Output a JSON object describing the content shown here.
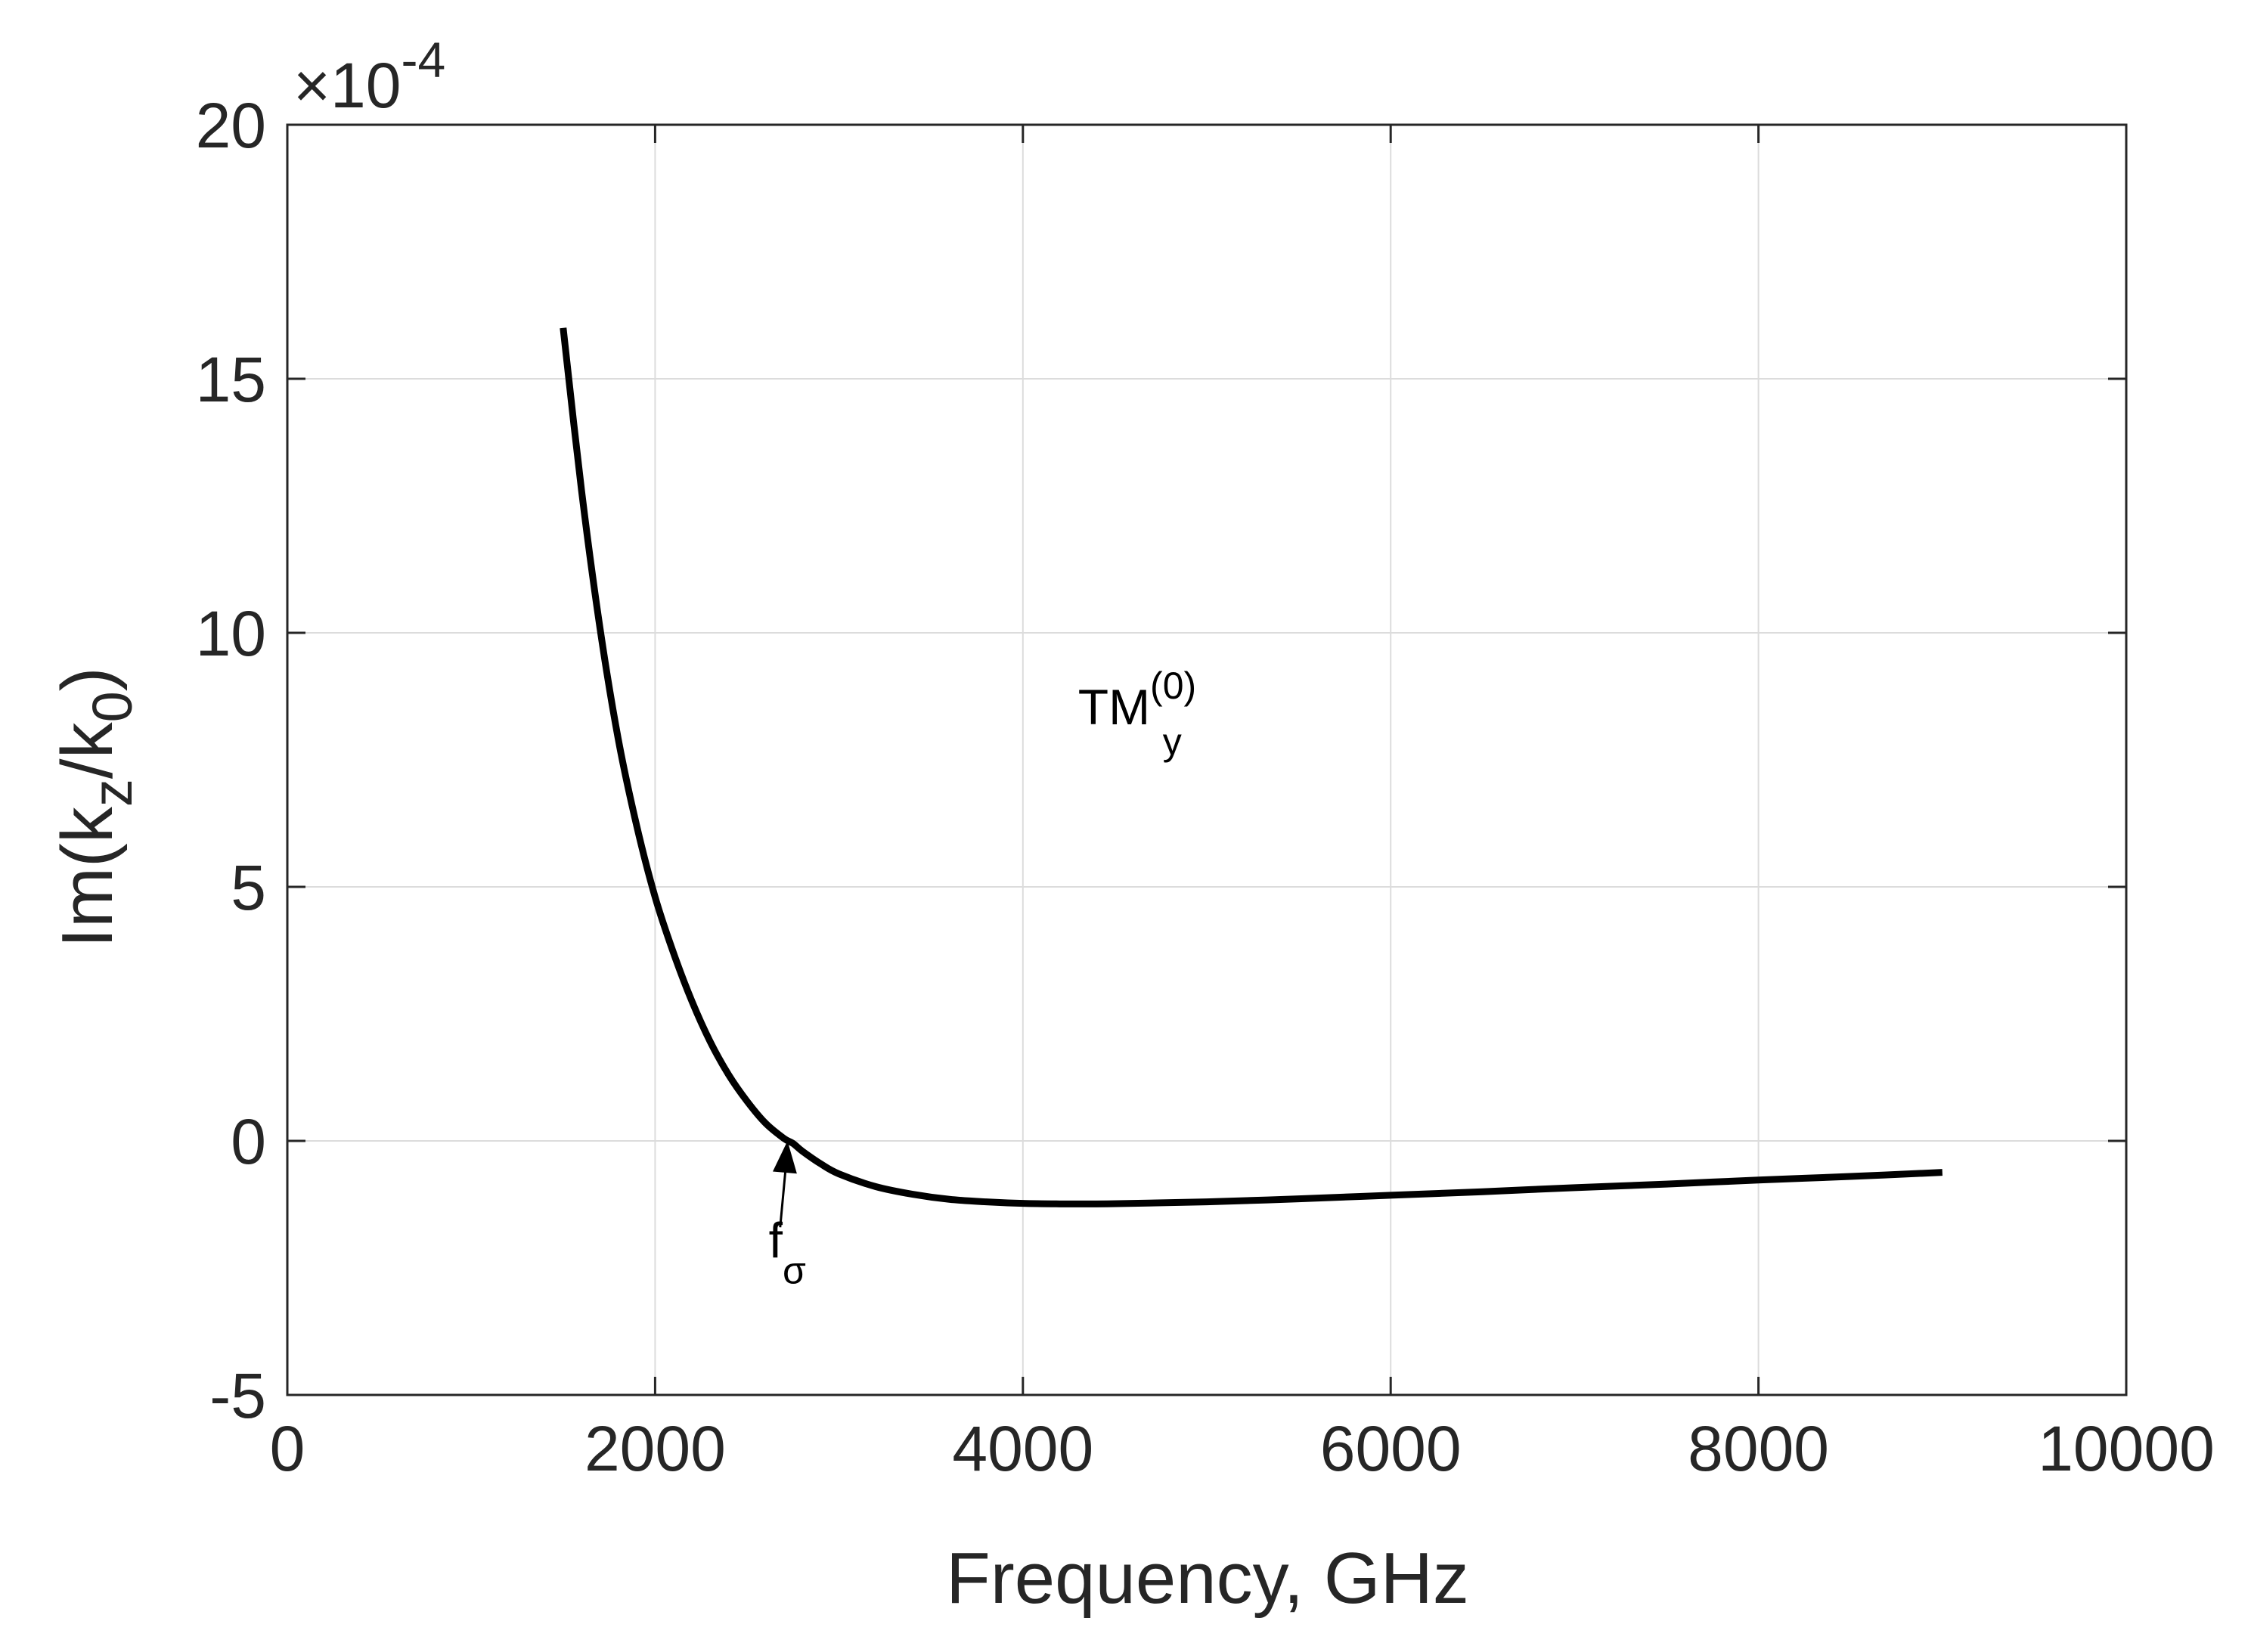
{
  "chart_data": {
    "type": "line",
    "xlabel": "Frequency, GHz",
    "ylabel": {
      "main": "Im(k",
      "sub1": "z",
      "mid": "/k",
      "sub2": "0",
      "close": ")"
    },
    "xlim": [
      0,
      10000
    ],
    "ylim": [
      -5,
      20
    ],
    "y_scale_factor": {
      "times": "×10",
      "exponent": "-4"
    },
    "xticks": [
      0,
      2000,
      4000,
      6000,
      8000,
      10000
    ],
    "xtick_labels": [
      "0",
      "2000",
      "4000",
      "6000",
      "8000",
      "10000"
    ],
    "yticks": [
      -5,
      0,
      5,
      10,
      15,
      20
    ],
    "ytick_labels": [
      "-5",
      "0",
      "5",
      "10",
      "15",
      "20"
    ],
    "grid": true,
    "series": [
      {
        "name": "TM_y^(0)",
        "color": "#000000",
        "x": [
          1500,
          1600,
          1700,
          1800,
          1900,
          2000,
          2100,
          2200,
          2300,
          2400,
          2500,
          2600,
          2700,
          2750,
          2800,
          2900,
          3000,
          3200,
          3400,
          3600,
          3800,
          4000,
          4200,
          4400,
          4600,
          5000,
          5500,
          6000,
          6500,
          7000,
          7500,
          8000,
          8500,
          9000
        ],
        "y": [
          16.0,
          12.8,
          10.1,
          7.9,
          6.2,
          4.8,
          3.7,
          2.75,
          1.95,
          1.3,
          0.78,
          0.35,
          0.05,
          -0.05,
          -0.2,
          -0.45,
          -0.65,
          -0.9,
          -1.05,
          -1.15,
          -1.2,
          -1.23,
          -1.24,
          -1.24,
          -1.23,
          -1.2,
          -1.14,
          -1.07,
          -1.0,
          -0.92,
          -0.85,
          -0.77,
          -0.7,
          -0.62
        ]
      }
    ],
    "annotations": {
      "mode_label": {
        "main": "TM",
        "sub": "y",
        "sup": "(0)",
        "x": 4300,
        "y": 8.2
      },
      "crossing_label": {
        "main": "f",
        "sub": "σ",
        "x": 2700,
        "y": -2.6,
        "arrow_from": [
          2680,
          -1.7
        ],
        "arrow_to": [
          2720,
          0.0
        ]
      }
    }
  }
}
